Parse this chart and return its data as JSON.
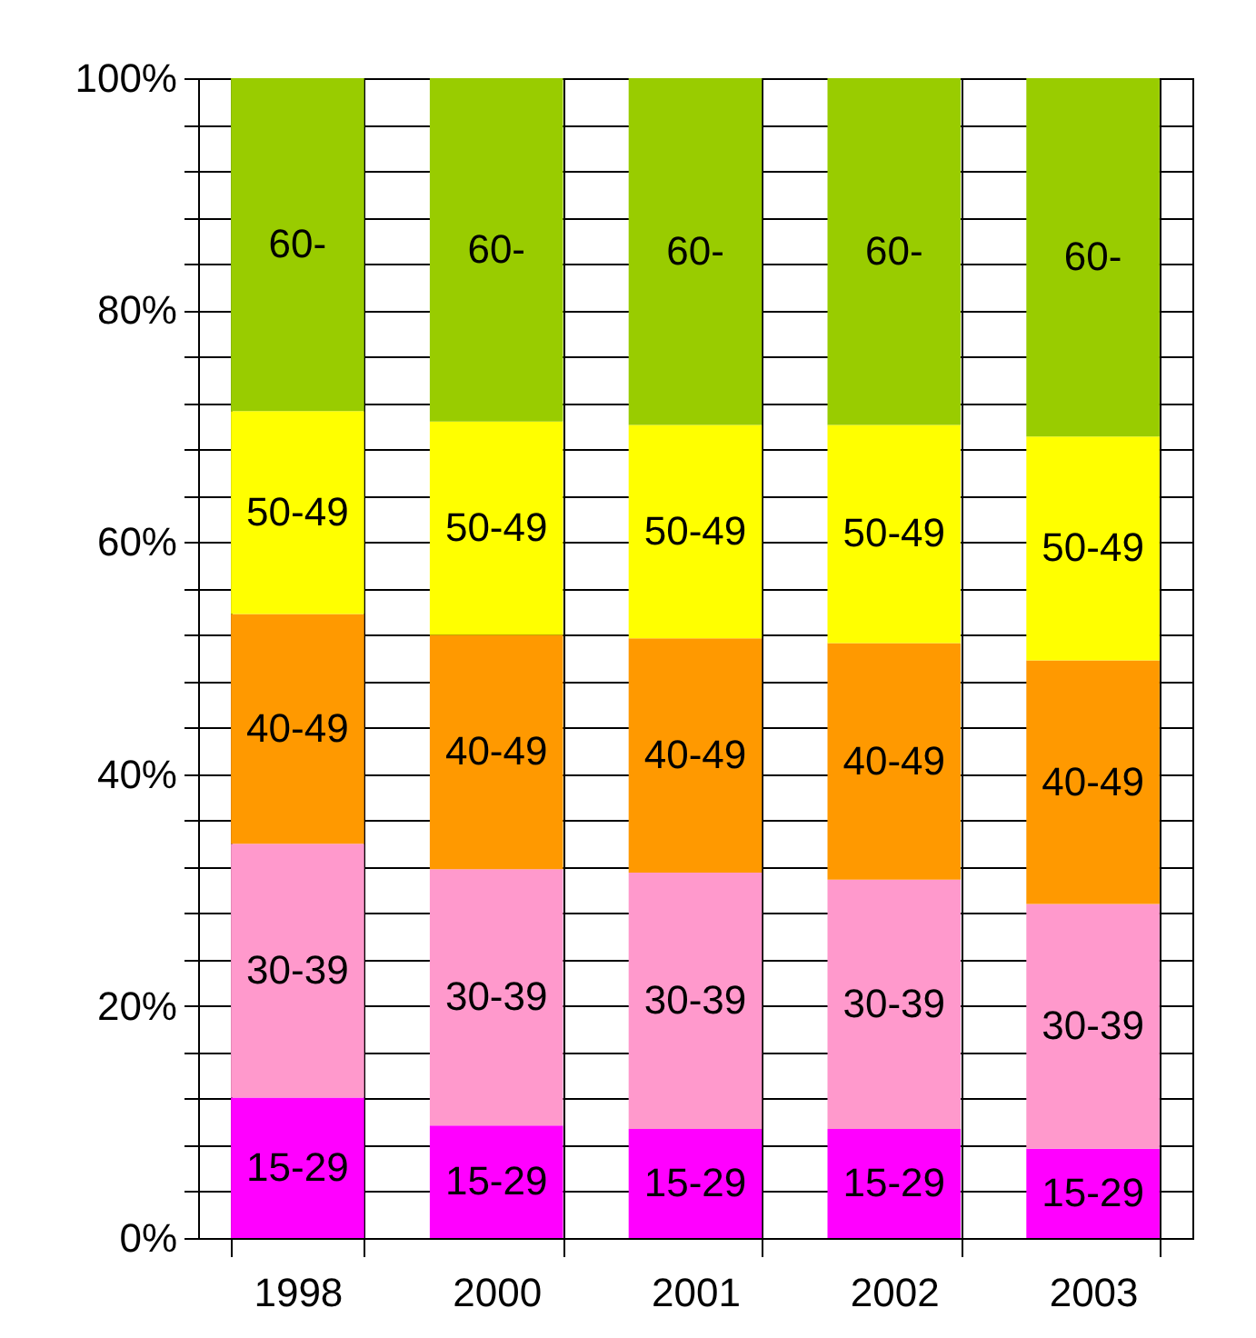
{
  "chart_data": {
    "type": "bar",
    "stacked": true,
    "categories": [
      "1998",
      "2000",
      "2001",
      "2002",
      "2003"
    ],
    "series": [
      {
        "name": "15-29",
        "color": "#ff00ff",
        "values": [
          12.1,
          9.7,
          9.4,
          9.4,
          7.7
        ]
      },
      {
        "name": "30-39",
        "color": "#ff99cc",
        "values": [
          21.9,
          22.1,
          22.1,
          21.5,
          21.1
        ]
      },
      {
        "name": "40-49",
        "color": "#ff9900",
        "values": [
          19.8,
          20.2,
          20.2,
          20.4,
          21.0
        ]
      },
      {
        "name": "50-49",
        "color": "#ffff00",
        "values": [
          17.5,
          18.4,
          18.4,
          18.8,
          19.3
        ]
      },
      {
        "name": "60-",
        "color": "#99cc00",
        "values": [
          28.7,
          29.6,
          29.9,
          29.9,
          30.9
        ]
      }
    ],
    "ylim": [
      0,
      100
    ],
    "yticks": [
      {
        "value": 0,
        "label": "0%"
      },
      {
        "value": 4,
        "label": null
      },
      {
        "value": 8,
        "label": null
      },
      {
        "value": 12,
        "label": null
      },
      {
        "value": 16,
        "label": null
      },
      {
        "value": 20,
        "label": "20%"
      },
      {
        "value": 24,
        "label": null
      },
      {
        "value": 28,
        "label": null
      },
      {
        "value": 32,
        "label": null
      },
      {
        "value": 36,
        "label": null
      },
      {
        "value": 40,
        "label": "40%"
      },
      {
        "value": 44,
        "label": null
      },
      {
        "value": 48,
        "label": null
      },
      {
        "value": 52,
        "label": null
      },
      {
        "value": 56,
        "label": null
      },
      {
        "value": 60,
        "label": "60%"
      },
      {
        "value": 64,
        "label": null
      },
      {
        "value": 68,
        "label": null
      },
      {
        "value": 72,
        "label": null
      },
      {
        "value": 76,
        "label": null
      },
      {
        "value": 80,
        "label": "80%"
      },
      {
        "value": 84,
        "label": null
      },
      {
        "value": 88,
        "label": null
      },
      {
        "value": 92,
        "label": null
      },
      {
        "value": 96,
        "label": null
      },
      {
        "value": 100,
        "label": "100%"
      }
    ],
    "grid": true,
    "legend": false
  }
}
